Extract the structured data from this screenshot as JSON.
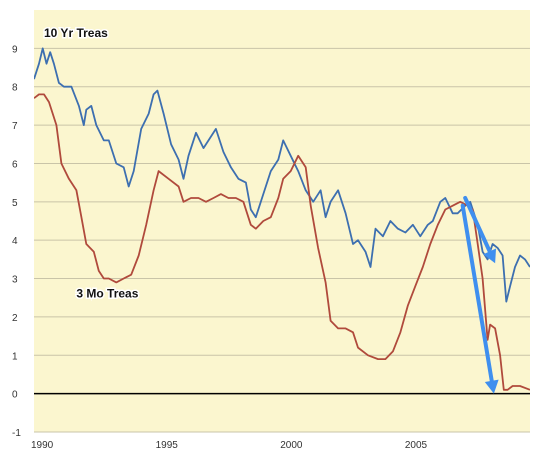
{
  "chart_data": {
    "type": "line",
    "title": "",
    "xlabel": "",
    "ylabel": "",
    "xlim": [
      1990,
      2009.9
    ],
    "ylim": [
      -1,
      10
    ],
    "x_ticks": [
      {
        "value": 1990,
        "label": "1990"
      },
      {
        "value": 1995,
        "label": "1995"
      },
      {
        "value": 2000,
        "label": "2000"
      },
      {
        "value": 2005,
        "label": "2005"
      }
    ],
    "y_ticks": [
      -1,
      0,
      1,
      2,
      3,
      4,
      5,
      6,
      7,
      8,
      9
    ],
    "grid": "horizontal",
    "colors": {
      "plot_background": "#fbf6cf",
      "grid": "#c9c4a8",
      "zero_line": "#000000",
      "treasury_10yr": "#3d6fb0",
      "treasury_3mo": "#b04a3c",
      "annotation_arrows": "#3f8fef"
    },
    "series": [
      {
        "name": "10 Yr Treas",
        "color": "#3d6fb0",
        "points": [
          [
            1990.0,
            8.2
          ],
          [
            1990.2,
            8.6
          ],
          [
            1990.35,
            9.0
          ],
          [
            1990.5,
            8.6
          ],
          [
            1990.65,
            8.9
          ],
          [
            1990.8,
            8.6
          ],
          [
            1991.0,
            8.1
          ],
          [
            1991.2,
            8.0
          ],
          [
            1991.5,
            8.0
          ],
          [
            1991.8,
            7.5
          ],
          [
            1992.0,
            7.0
          ],
          [
            1992.1,
            7.4
          ],
          [
            1992.3,
            7.5
          ],
          [
            1992.5,
            7.0
          ],
          [
            1992.8,
            6.6
          ],
          [
            1993.0,
            6.6
          ],
          [
            1993.3,
            6.0
          ],
          [
            1993.6,
            5.9
          ],
          [
            1993.8,
            5.4
          ],
          [
            1994.0,
            5.8
          ],
          [
            1994.3,
            6.9
          ],
          [
            1994.6,
            7.3
          ],
          [
            1994.8,
            7.8
          ],
          [
            1994.95,
            7.9
          ],
          [
            1995.2,
            7.3
          ],
          [
            1995.5,
            6.5
          ],
          [
            1995.8,
            6.1
          ],
          [
            1996.0,
            5.6
          ],
          [
            1996.2,
            6.2
          ],
          [
            1996.5,
            6.8
          ],
          [
            1996.8,
            6.4
          ],
          [
            1997.0,
            6.6
          ],
          [
            1997.3,
            6.9
          ],
          [
            1997.6,
            6.3
          ],
          [
            1997.9,
            5.9
          ],
          [
            1998.2,
            5.6
          ],
          [
            1998.5,
            5.5
          ],
          [
            1998.7,
            4.8
          ],
          [
            1998.9,
            4.6
          ],
          [
            1999.2,
            5.2
          ],
          [
            1999.5,
            5.8
          ],
          [
            1999.8,
            6.1
          ],
          [
            2000.0,
            6.6
          ],
          [
            2000.3,
            6.2
          ],
          [
            2000.6,
            5.8
          ],
          [
            2000.9,
            5.3
          ],
          [
            2001.2,
            5.0
          ],
          [
            2001.5,
            5.3
          ],
          [
            2001.7,
            4.6
          ],
          [
            2001.9,
            5.0
          ],
          [
            2002.2,
            5.3
          ],
          [
            2002.5,
            4.7
          ],
          [
            2002.8,
            3.9
          ],
          [
            2003.0,
            4.0
          ],
          [
            2003.3,
            3.7
          ],
          [
            2003.5,
            3.3
          ],
          [
            2003.7,
            4.3
          ],
          [
            2004.0,
            4.1
          ],
          [
            2004.3,
            4.5
          ],
          [
            2004.6,
            4.3
          ],
          [
            2004.9,
            4.2
          ],
          [
            2005.2,
            4.4
          ],
          [
            2005.5,
            4.1
          ],
          [
            2005.8,
            4.4
          ],
          [
            2006.0,
            4.5
          ],
          [
            2006.3,
            5.0
          ],
          [
            2006.5,
            5.1
          ],
          [
            2006.8,
            4.7
          ],
          [
            2007.0,
            4.7
          ],
          [
            2007.3,
            4.9
          ],
          [
            2007.5,
            5.0
          ],
          [
            2007.8,
            4.4
          ],
          [
            2008.0,
            3.7
          ],
          [
            2008.2,
            3.5
          ],
          [
            2008.4,
            3.9
          ],
          [
            2008.6,
            3.8
          ],
          [
            2008.8,
            3.6
          ],
          [
            2008.95,
            2.4
          ],
          [
            2009.1,
            2.8
          ],
          [
            2009.3,
            3.3
          ],
          [
            2009.5,
            3.6
          ],
          [
            2009.7,
            3.5
          ],
          [
            2009.9,
            3.3
          ]
        ]
      },
      {
        "name": "3 Mo Treas",
        "color": "#b04a3c",
        "points": [
          [
            1990.0,
            7.7
          ],
          [
            1990.2,
            7.8
          ],
          [
            1990.4,
            7.8
          ],
          [
            1990.6,
            7.6
          ],
          [
            1990.9,
            7.0
          ],
          [
            1991.1,
            6.0
          ],
          [
            1991.4,
            5.6
          ],
          [
            1991.7,
            5.3
          ],
          [
            1991.9,
            4.6
          ],
          [
            1992.1,
            3.9
          ],
          [
            1992.4,
            3.7
          ],
          [
            1992.6,
            3.2
          ],
          [
            1992.8,
            3.0
          ],
          [
            1993.0,
            3.0
          ],
          [
            1993.3,
            2.9
          ],
          [
            1993.6,
            3.0
          ],
          [
            1993.9,
            3.1
          ],
          [
            1994.2,
            3.6
          ],
          [
            1994.5,
            4.4
          ],
          [
            1994.8,
            5.3
          ],
          [
            1995.0,
            5.8
          ],
          [
            1995.4,
            5.6
          ],
          [
            1995.8,
            5.4
          ],
          [
            1996.0,
            5.0
          ],
          [
            1996.3,
            5.1
          ],
          [
            1996.6,
            5.1
          ],
          [
            1996.9,
            5.0
          ],
          [
            1997.2,
            5.1
          ],
          [
            1997.5,
            5.2
          ],
          [
            1997.8,
            5.1
          ],
          [
            1998.1,
            5.1
          ],
          [
            1998.4,
            5.0
          ],
          [
            1998.7,
            4.4
          ],
          [
            1998.9,
            4.3
          ],
          [
            1999.2,
            4.5
          ],
          [
            1999.5,
            4.6
          ],
          [
            1999.8,
            5.1
          ],
          [
            2000.0,
            5.6
          ],
          [
            2000.3,
            5.8
          ],
          [
            2000.6,
            6.2
          ],
          [
            2000.9,
            5.9
          ],
          [
            2001.1,
            4.9
          ],
          [
            2001.4,
            3.8
          ],
          [
            2001.7,
            2.9
          ],
          [
            2001.9,
            1.9
          ],
          [
            2002.2,
            1.7
          ],
          [
            2002.5,
            1.7
          ],
          [
            2002.8,
            1.6
          ],
          [
            2003.0,
            1.2
          ],
          [
            2003.4,
            1.0
          ],
          [
            2003.8,
            0.9
          ],
          [
            2004.1,
            0.9
          ],
          [
            2004.4,
            1.1
          ],
          [
            2004.7,
            1.6
          ],
          [
            2005.0,
            2.3
          ],
          [
            2005.3,
            2.8
          ],
          [
            2005.6,
            3.3
          ],
          [
            2005.9,
            3.9
          ],
          [
            2006.2,
            4.4
          ],
          [
            2006.5,
            4.8
          ],
          [
            2006.8,
            4.9
          ],
          [
            2007.1,
            5.0
          ],
          [
            2007.4,
            4.9
          ],
          [
            2007.6,
            4.8
          ],
          [
            2007.8,
            3.9
          ],
          [
            2008.0,
            3.0
          ],
          [
            2008.2,
            1.4
          ],
          [
            2008.3,
            1.8
          ],
          [
            2008.5,
            1.7
          ],
          [
            2008.7,
            1.0
          ],
          [
            2008.85,
            0.1
          ],
          [
            2009.0,
            0.1
          ],
          [
            2009.2,
            0.2
          ],
          [
            2009.5,
            0.2
          ],
          [
            2009.9,
            0.1
          ]
        ]
      }
    ],
    "series_labels": [
      {
        "text": "10 Yr Treas",
        "x": 1990.4,
        "y": 9.3
      },
      {
        "text": "3 Mo Treas",
        "x": 1991.7,
        "y": 2.5
      }
    ],
    "annotations": [
      {
        "kind": "arrow",
        "from": [
          2007.3,
          5.1
        ],
        "to": [
          2008.5,
          3.4
        ]
      },
      {
        "kind": "arrow",
        "from": [
          2007.2,
          4.9
        ],
        "to": [
          2008.45,
          0.0
        ]
      }
    ]
  }
}
